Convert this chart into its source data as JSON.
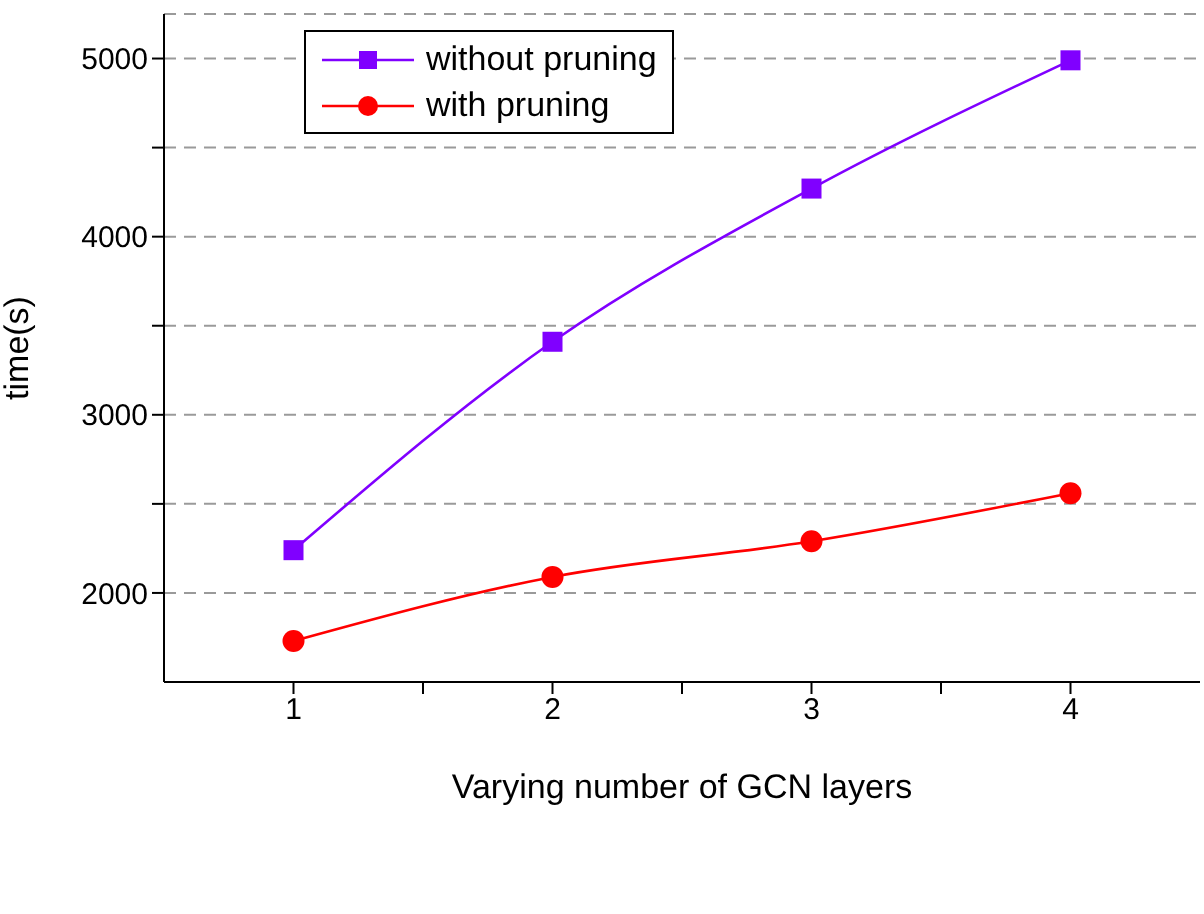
{
  "chart_data": {
    "type": "line",
    "xlabel": "Varying number of GCN layers",
    "ylabel": "time(s)",
    "x": [
      1,
      2,
      3,
      4
    ],
    "series": [
      {
        "name": "without pruning",
        "color": "#8000ff",
        "marker": "square",
        "values": [
          2240,
          3410,
          4270,
          4990
        ]
      },
      {
        "name": "with pruning",
        "color": "#ff0000",
        "marker": "circle",
        "values": [
          1730,
          2090,
          2290,
          2560
        ]
      }
    ],
    "xlim": [
      0.5,
      4.5
    ],
    "xticks": [
      1,
      {
        "value": 1.5,
        "label": null
      },
      2,
      {
        "value": 2.5,
        "label": null
      },
      3,
      {
        "value": 3.5,
        "label": null
      },
      4
    ],
    "ylim": [
      1500,
      5250
    ],
    "yticks": [
      2000,
      {
        "value": 2500,
        "label": null
      },
      3000,
      {
        "value": 3500,
        "label": null
      },
      4000,
      {
        "value": 4500,
        "label": null
      },
      5000
    ],
    "grid": "y",
    "legend": "top left",
    "line_style": "solid"
  }
}
